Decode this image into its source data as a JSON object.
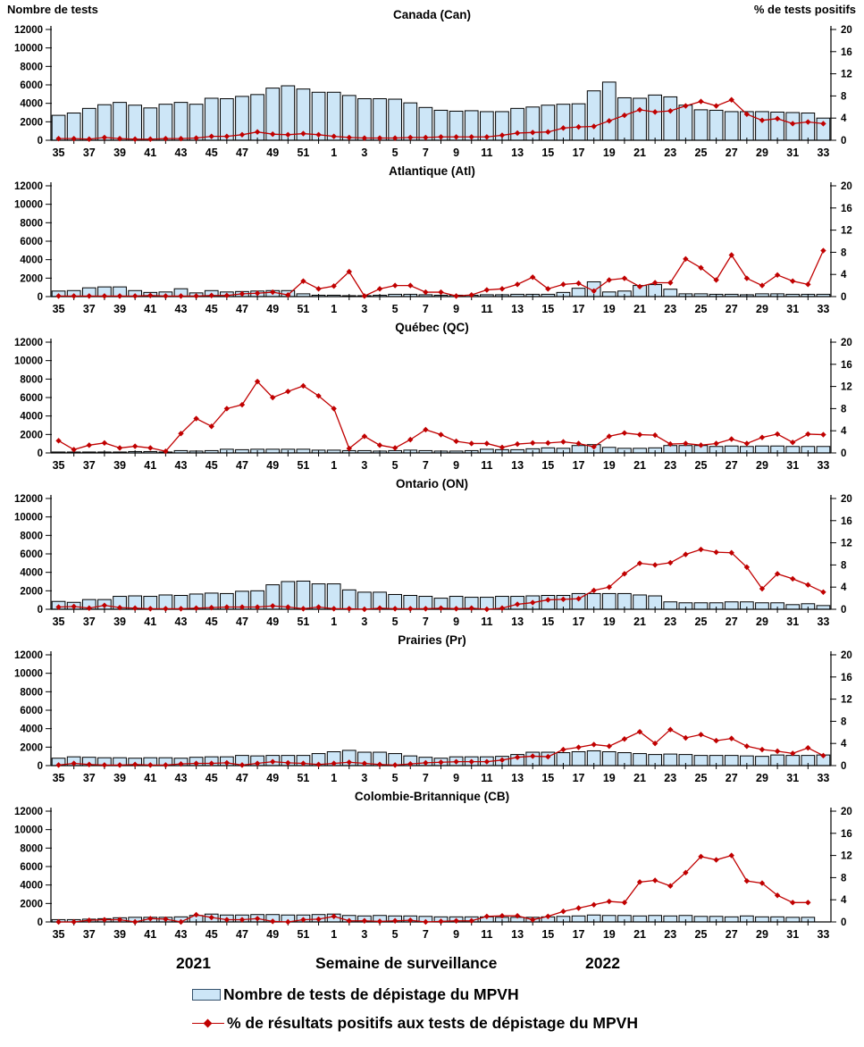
{
  "page": {
    "left_axis_header": "Nombre de tests",
    "right_axis_header": "% de tests positifs",
    "x_axis_label": "Semaine de surveillance",
    "year_left": "2021",
    "year_right": "2022",
    "legend": {
      "bar_label": "Nombre de tests de dépistage du MPVH",
      "line_label": "% de résultats positifs aux tests de dépistage du MPVH"
    },
    "colors": {
      "bar_fill": "#CDE6F7",
      "bar_border": "#000000",
      "line": "#C00000",
      "text": "#000000"
    }
  },
  "chart_data": [
    {
      "type": "bar+line",
      "title": "Canada (Can)",
      "weeks": [
        35,
        36,
        37,
        38,
        39,
        40,
        41,
        42,
        43,
        44,
        45,
        46,
        47,
        48,
        49,
        50,
        51,
        52,
        1,
        2,
        3,
        4,
        5,
        6,
        7,
        8,
        9,
        10,
        11,
        12,
        13,
        14,
        15,
        16,
        17,
        18,
        19,
        20,
        21,
        22,
        23,
        24,
        25,
        26,
        27,
        28,
        29,
        30,
        31,
        32,
        33
      ],
      "ylim_left": [
        0,
        12000
      ],
      "yticks_left": [
        0,
        2000,
        4000,
        6000,
        8000,
        10000,
        12000
      ],
      "ylim_right": [
        0,
        20
      ],
      "yticks_right": [
        0,
        4,
        8,
        12,
        16,
        20
      ],
      "bars": {
        "name": "Nombre de tests de dépistage du MPVH",
        "axis": "left",
        "values": [
          2700,
          2950,
          3450,
          3850,
          4100,
          3800,
          3500,
          3900,
          4100,
          3900,
          4550,
          4500,
          4750,
          4950,
          5650,
          5900,
          5550,
          5200,
          5200,
          4850,
          4500,
          4500,
          4450,
          4050,
          3550,
          3250,
          3150,
          3200,
          3100,
          3100,
          3450,
          3600,
          3800,
          3900,
          3950,
          5350,
          6300,
          4600,
          4550,
          4900,
          4700,
          3800,
          3300,
          3250,
          3100,
          3100,
          3100,
          3050,
          3000,
          2950,
          2400
        ]
      },
      "line": {
        "name": "% de résultats positifs aux tests de dépistage du MPVH",
        "axis": "right",
        "values": [
          0.3,
          0.3,
          0.2,
          0.5,
          0.3,
          0.2,
          0.2,
          0.3,
          0.3,
          0.4,
          0.7,
          0.7,
          1.0,
          1.5,
          1.1,
          1.0,
          1.2,
          1.0,
          0.7,
          0.5,
          0.4,
          0.4,
          0.4,
          0.5,
          0.5,
          0.6,
          0.6,
          0.6,
          0.6,
          0.9,
          1.3,
          1.4,
          1.5,
          2.2,
          2.4,
          2.5,
          3.5,
          4.5,
          5.5,
          5.1,
          5.3,
          6.2,
          7.0,
          6.2,
          7.3,
          4.7,
          3.6,
          3.9,
          3.0,
          3.3,
          3.0
        ]
      }
    },
    {
      "type": "bar+line",
      "title": "Atlantique (Atl)",
      "weeks": [
        35,
        36,
        37,
        38,
        39,
        40,
        41,
        42,
        43,
        44,
        45,
        46,
        47,
        48,
        49,
        50,
        51,
        52,
        1,
        2,
        3,
        4,
        5,
        6,
        7,
        8,
        9,
        10,
        11,
        12,
        13,
        14,
        15,
        16,
        17,
        18,
        19,
        20,
        21,
        22,
        23,
        24,
        25,
        26,
        27,
        28,
        29,
        30,
        31,
        32,
        33
      ],
      "ylim_left": [
        0,
        12000
      ],
      "yticks_left": [
        0,
        2000,
        4000,
        6000,
        8000,
        10000,
        12000
      ],
      "ylim_right": [
        0,
        20
      ],
      "yticks_right": [
        0,
        4,
        8,
        12,
        16,
        20
      ],
      "bars": {
        "name": "Nombre de tests de dépistage du MPVH",
        "axis": "left",
        "values": [
          600,
          650,
          950,
          1050,
          1050,
          650,
          450,
          500,
          850,
          400,
          650,
          500,
          550,
          600,
          650,
          650,
          300,
          150,
          150,
          100,
          100,
          150,
          250,
          250,
          200,
          150,
          150,
          150,
          200,
          200,
          250,
          250,
          250,
          450,
          900,
          1600,
          500,
          600,
          1200,
          1300,
          800,
          300,
          300,
          250,
          250,
          200,
          300,
          300,
          250,
          250,
          250
        ]
      },
      "line": {
        "name": "% de résultats positifs aux tests de dépistage du MPVH",
        "axis": "right",
        "values": [
          0.1,
          0.1,
          0.1,
          0.1,
          0.1,
          0.1,
          0.2,
          0.1,
          0.1,
          0.1,
          0.2,
          0.2,
          0.5,
          0.6,
          0.8,
          0.3,
          2.8,
          1.4,
          1.9,
          4.5,
          0.1,
          1.4,
          2.0,
          2.0,
          0.8,
          0.8,
          0.1,
          0.3,
          1.2,
          1.4,
          2.2,
          3.5,
          1.4,
          2.2,
          2.4,
          1.0,
          3.0,
          3.3,
          1.8,
          2.5,
          2.5,
          6.8,
          5.2,
          3.0,
          7.5,
          3.3,
          2.0,
          3.9,
          2.8,
          2.2,
          8.3
        ]
      }
    },
    {
      "type": "bar+line",
      "title": "Québec (QC)",
      "weeks": [
        35,
        36,
        37,
        38,
        39,
        40,
        41,
        42,
        43,
        44,
        45,
        46,
        47,
        48,
        49,
        50,
        51,
        52,
        1,
        2,
        3,
        4,
        5,
        6,
        7,
        8,
        9,
        10,
        11,
        12,
        13,
        14,
        15,
        16,
        17,
        18,
        19,
        20,
        21,
        22,
        23,
        24,
        25,
        26,
        27,
        28,
        29,
        30,
        31,
        32,
        33
      ],
      "ylim_left": [
        0,
        12000
      ],
      "yticks_left": [
        0,
        2000,
        4000,
        6000,
        8000,
        10000,
        12000
      ],
      "ylim_right": [
        0,
        20
      ],
      "yticks_right": [
        0,
        4,
        8,
        12,
        16,
        20
      ],
      "bars": {
        "name": "Nombre de tests de dépistage du MPVH",
        "axis": "left",
        "values": [
          100,
          100,
          100,
          100,
          100,
          150,
          150,
          100,
          250,
          200,
          250,
          400,
          350,
          400,
          400,
          400,
          400,
          300,
          300,
          250,
          250,
          200,
          250,
          300,
          250,
          200,
          200,
          250,
          400,
          350,
          350,
          450,
          550,
          500,
          800,
          900,
          600,
          500,
          500,
          550,
          800,
          800,
          800,
          700,
          750,
          700,
          750,
          750,
          700,
          700,
          700
        ]
      },
      "line": {
        "name": "% de résultats positifs aux tests de dépistage du MPVH",
        "axis": "right",
        "values": [
          2.2,
          0.6,
          1.4,
          1.8,
          0.9,
          1.2,
          0.9,
          0.3,
          3.5,
          6.2,
          4.8,
          8.0,
          8.7,
          12.9,
          10.0,
          11.1,
          12.1,
          10.3,
          8.0,
          0.8,
          3.0,
          1.4,
          0.9,
          2.4,
          4.2,
          3.3,
          2.1,
          1.7,
          1.7,
          1.0,
          1.6,
          1.8,
          1.8,
          2.0,
          1.7,
          1.1,
          3.0,
          3.6,
          3.3,
          3.2,
          1.6,
          1.7,
          1.4,
          1.7,
          2.5,
          1.7,
          2.8,
          3.4,
          1.9,
          3.4,
          3.3
        ]
      }
    },
    {
      "type": "bar+line",
      "title": "Ontario (ON)",
      "weeks": [
        35,
        36,
        37,
        38,
        39,
        40,
        41,
        42,
        43,
        44,
        45,
        46,
        47,
        48,
        49,
        50,
        51,
        52,
        1,
        2,
        3,
        4,
        5,
        6,
        7,
        8,
        9,
        10,
        11,
        12,
        13,
        14,
        15,
        16,
        17,
        18,
        19,
        20,
        21,
        22,
        23,
        24,
        25,
        26,
        27,
        28,
        29,
        30,
        31,
        32,
        33
      ],
      "ylim_left": [
        0,
        12000
      ],
      "yticks_left": [
        0,
        2000,
        4000,
        6000,
        8000,
        10000,
        12000
      ],
      "ylim_right": [
        0,
        20
      ],
      "yticks_right": [
        0,
        4,
        8,
        12,
        16,
        20
      ],
      "bars": {
        "name": "Nombre de tests de dépistage du MPVH",
        "axis": "left",
        "values": [
          850,
          750,
          1050,
          1050,
          1400,
          1450,
          1400,
          1550,
          1500,
          1650,
          1750,
          1700,
          1950,
          2000,
          2650,
          3000,
          3050,
          2750,
          2750,
          2100,
          1850,
          1850,
          1600,
          1500,
          1400,
          1200,
          1400,
          1300,
          1300,
          1400,
          1400,
          1450,
          1500,
          1500,
          1700,
          1700,
          1700,
          1700,
          1550,
          1450,
          800,
          700,
          700,
          700,
          800,
          800,
          700,
          700,
          500,
          600,
          400
        ]
      },
      "line": {
        "name": "% de résultats positifs aux tests de dépistage du MPVH",
        "axis": "right",
        "values": [
          0.4,
          0.5,
          0.2,
          0.7,
          0.3,
          0.2,
          0.1,
          0.1,
          0.1,
          0.2,
          0.3,
          0.4,
          0.4,
          0.4,
          0.6,
          0.4,
          0.1,
          0.4,
          0.1,
          0.1,
          0.0,
          0.2,
          0.1,
          0.1,
          0.1,
          0.2,
          0.1,
          0.2,
          0.0,
          0.2,
          0.9,
          1.2,
          1.7,
          1.8,
          1.9,
          3.4,
          4.0,
          6.4,
          8.3,
          8.0,
          8.4,
          9.9,
          10.8,
          10.3,
          10.2,
          7.6,
          3.7,
          6.4,
          5.5,
          4.4,
          3.1
        ]
      }
    },
    {
      "type": "bar+line",
      "title": "Prairies (Pr)",
      "weeks": [
        35,
        36,
        37,
        38,
        39,
        40,
        41,
        42,
        43,
        44,
        45,
        46,
        47,
        48,
        49,
        50,
        51,
        52,
        1,
        2,
        3,
        4,
        5,
        6,
        7,
        8,
        9,
        10,
        11,
        12,
        13,
        14,
        15,
        16,
        17,
        18,
        19,
        20,
        21,
        22,
        23,
        24,
        25,
        26,
        27,
        28,
        29,
        30,
        31,
        32,
        33
      ],
      "ylim_left": [
        0,
        12000
      ],
      "yticks_left": [
        0,
        2000,
        4000,
        6000,
        8000,
        10000,
        12000
      ],
      "ylim_right": [
        0,
        20
      ],
      "yticks_right": [
        0,
        4,
        8,
        12,
        16,
        20
      ],
      "bars": {
        "name": "Nombre de tests de dépistage du MPVH",
        "axis": "left",
        "values": [
          800,
          950,
          900,
          850,
          850,
          800,
          850,
          850,
          800,
          900,
          950,
          950,
          1100,
          1050,
          1100,
          1100,
          1100,
          1300,
          1500,
          1650,
          1450,
          1450,
          1300,
          1050,
          900,
          800,
          950,
          950,
          950,
          1000,
          1200,
          1450,
          1450,
          1400,
          1500,
          1600,
          1500,
          1400,
          1300,
          1200,
          1250,
          1200,
          1100,
          1100,
          1100,
          1050,
          1000,
          1150,
          1100,
          1100,
          1150
        ]
      },
      "line": {
        "name": "% de résultats positifs aux tests de dépistage du MPVH",
        "axis": "right",
        "values": [
          0.1,
          0.4,
          0.2,
          0.1,
          0.1,
          0.2,
          0.1,
          0.1,
          0.3,
          0.4,
          0.4,
          0.5,
          0.1,
          0.4,
          0.7,
          0.5,
          0.4,
          0.2,
          0.4,
          0.6,
          0.4,
          0.2,
          0.1,
          0.3,
          0.5,
          0.6,
          0.7,
          0.7,
          0.7,
          1.0,
          1.5,
          1.7,
          1.6,
          2.9,
          3.3,
          3.8,
          3.5,
          4.8,
          6.1,
          4.0,
          6.5,
          5.0,
          5.6,
          4.5,
          4.9,
          3.5,
          2.9,
          2.6,
          2.2,
          3.2,
          1.8
        ]
      }
    },
    {
      "type": "bar+line",
      "title": "Colombie-Britannique (CB)",
      "weeks": [
        35,
        36,
        37,
        38,
        39,
        40,
        41,
        42,
        43,
        44,
        45,
        46,
        47,
        48,
        49,
        50,
        51,
        52,
        1,
        2,
        3,
        4,
        5,
        6,
        7,
        8,
        9,
        10,
        11,
        12,
        13,
        14,
        15,
        16,
        17,
        18,
        19,
        20,
        21,
        22,
        23,
        24,
        25,
        26,
        27,
        28,
        29,
        30,
        31,
        32,
        33
      ],
      "ylim_left": [
        0,
        12000
      ],
      "yticks_left": [
        0,
        2000,
        4000,
        6000,
        8000,
        10000,
        12000
      ],
      "ylim_right": [
        0,
        20
      ],
      "yticks_right": [
        0,
        4,
        8,
        12,
        16,
        20
      ],
      "bars": {
        "name": "Nombre de tests de dépistage du MPVH",
        "axis": "left",
        "values": [
          250,
          250,
          300,
          350,
          450,
          500,
          500,
          500,
          550,
          700,
          850,
          750,
          750,
          800,
          800,
          750,
          750,
          800,
          850,
          700,
          650,
          700,
          650,
          650,
          600,
          550,
          550,
          550,
          550,
          500,
          500,
          500,
          550,
          600,
          650,
          750,
          700,
          700,
          650,
          700,
          650,
          700,
          600,
          600,
          550,
          650,
          550,
          550,
          500,
          500,
          null
        ]
      },
      "line": {
        "name": "% de résultats positifs aux tests de dépistage du MPVH",
        "axis": "right",
        "values": [
          0.0,
          0.0,
          0.3,
          0.4,
          0.4,
          0.0,
          0.6,
          0.5,
          0.0,
          1.3,
          0.8,
          0.4,
          0.4,
          0.6,
          0.1,
          0.0,
          0.4,
          0.5,
          1.0,
          0.2,
          0.2,
          0.1,
          0.2,
          0.3,
          0.0,
          0.1,
          0.2,
          0.2,
          1.0,
          1.1,
          1.1,
          0.4,
          1.0,
          1.9,
          2.5,
          3.1,
          3.7,
          3.5,
          7.2,
          7.5,
          6.5,
          8.9,
          11.8,
          11.2,
          12.0,
          7.4,
          7.0,
          4.8,
          3.5,
          3.5,
          null
        ]
      }
    }
  ]
}
